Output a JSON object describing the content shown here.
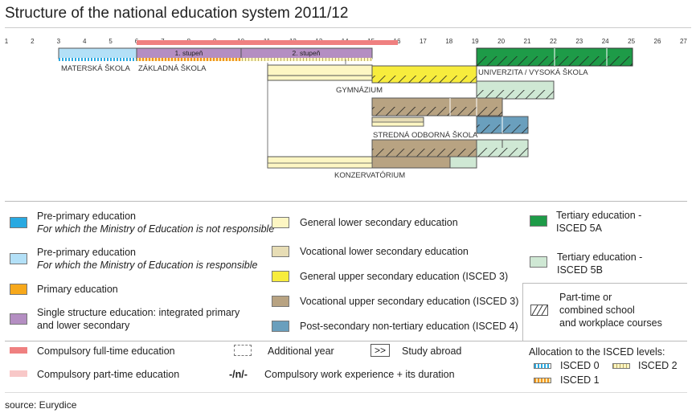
{
  "title": "Structure of the national education system 2011/12",
  "source": "source: Eurydice",
  "ages": [
    "1",
    "2",
    "3",
    "4",
    "5",
    "6",
    "7",
    "8",
    "9",
    "10",
    "11",
    "12",
    "13",
    "14",
    "15",
    "16",
    "17",
    "18",
    "19",
    "20",
    "21",
    "22",
    "23",
    "24",
    "25",
    "26",
    "27"
  ],
  "colors": {
    "pre_primary_not_responsible": "#29a9e1",
    "pre_primary_responsible": "#b3e0f7",
    "primary": "#f7a81b",
    "single_structure": "#b48ec2",
    "general_lower_secondary": "#fdf6c3",
    "vocational_lower_secondary": "#e7ddb5",
    "general_upper_secondary": "#f7ec3d",
    "vocational_upper_secondary": "#b8a382",
    "post_secondary": "#6a9fbd",
    "tertiary_5a": "#1e9b48",
    "tertiary_5b": "#cfe8d4",
    "compulsory_full": "#ef8080",
    "compulsory_part": "#f8c8c8"
  },
  "schools": {
    "materska_skola": "MATERSKÁ ŠKOLA",
    "zakladna_skola": "ZÁKLADNÁ ŠKOLA",
    "stupen_1": "1. stupeň",
    "stupen_2": "2. stupeň",
    "univerzita": "UNIVERZITA / VYSOKÁ ŠKOLA",
    "gymnazium": "GYMNÁZIUM",
    "stredna_odborna_skola": "STREDNÁ ODBORNÁ ŠKOLA",
    "konzervatorium": "KONZERVATÓRIUM"
  },
  "legend": {
    "pre_primary_nr_title": "Pre-primary education",
    "pre_primary_nr_sub": "For which the Ministry of Education is not responsible",
    "pre_primary_r_title": "Pre-primary education",
    "pre_primary_r_sub": "For which the Ministry of Education is responsible",
    "primary": "Primary education",
    "single_structure_1": "Single structure education: integrated primary",
    "single_structure_2": "and lower secondary",
    "general_lower": "General lower secondary education",
    "vocational_lower": "Vocational lower secondary education",
    "general_upper": "General upper secondary education (ISCED 3)",
    "vocational_upper": "Vocational upper secondary education (ISCED 3)",
    "post_secondary": "Post-secondary non-tertiary education (ISCED 4)",
    "tertiary_5a_1": "Tertiary education -",
    "tertiary_5a_2": "ISCED 5A",
    "tertiary_5b_1": "Tertiary education -",
    "tertiary_5b_2": "ISCED 5B",
    "part_time_1": "Part-time or",
    "part_time_2": "combined school",
    "part_time_3": "and workplace courses",
    "compulsory_full": "Compulsory full-time education",
    "compulsory_part": "Compulsory part-time education",
    "additional_year": "Additional year",
    "study_abroad_symbol": ">>",
    "study_abroad": "Study abroad",
    "work_exp_symbol": "-/n/-",
    "work_exp": "Compulsory work experience + its duration",
    "allocation_title": "Allocation to the ISCED levels:",
    "isced0": "ISCED 0",
    "isced1": "ISCED 1",
    "isced2": "ISCED 2"
  }
}
